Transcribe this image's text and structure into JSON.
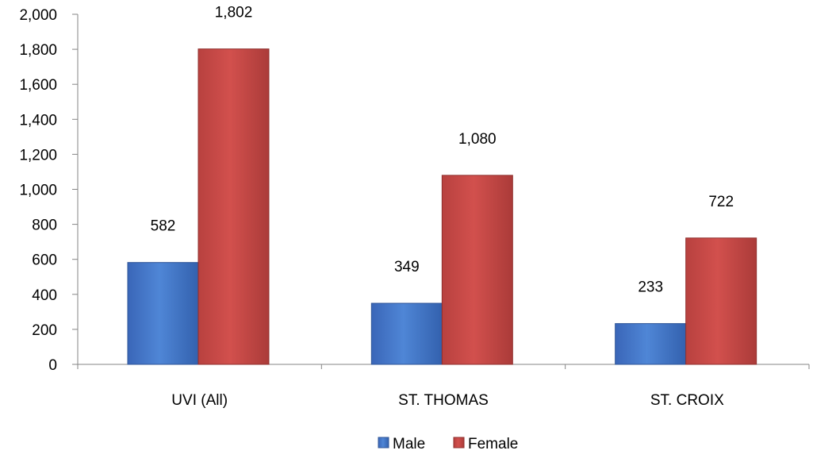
{
  "chart_data": {
    "type": "bar",
    "categories": [
      "UVI (All)",
      "ST. THOMAS",
      "ST. CROIX"
    ],
    "series": [
      {
        "name": "Male",
        "values": [
          582,
          349,
          233
        ],
        "color": "#4472c4",
        "labels": [
          "582",
          "349",
          "233"
        ]
      },
      {
        "name": "Female",
        "values": [
          1802,
          1080,
          722
        ],
        "color": "#c0504d",
        "labels": [
          "1,802",
          "1,080",
          "722"
        ]
      }
    ],
    "ylim": [
      0,
      2000
    ],
    "y_ticks": [
      0,
      200,
      400,
      600,
      800,
      1000,
      1200,
      1400,
      1600,
      1800,
      2000
    ],
    "y_tick_labels": [
      "0",
      "200",
      "400",
      "600",
      "800",
      "1,000",
      "1,200",
      "1,400",
      "1,600",
      "1,800",
      "2,000"
    ],
    "grid": false,
    "legend_position": "bottom",
    "title": "",
    "xlabel": "",
    "ylabel": ""
  }
}
